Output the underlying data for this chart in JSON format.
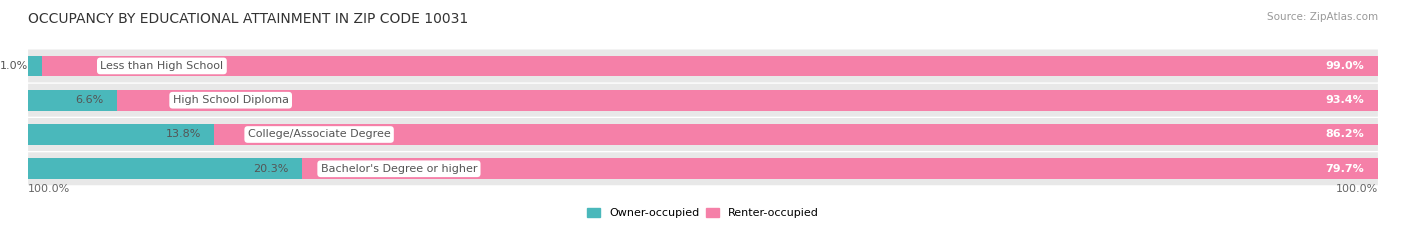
{
  "title": "OCCUPANCY BY EDUCATIONAL ATTAINMENT IN ZIP CODE 10031",
  "source": "Source: ZipAtlas.com",
  "categories": [
    "Less than High School",
    "High School Diploma",
    "College/Associate Degree",
    "Bachelor's Degree or higher"
  ],
  "owner_pct": [
    1.0,
    6.6,
    13.8,
    20.3
  ],
  "renter_pct": [
    99.0,
    93.4,
    86.2,
    79.7
  ],
  "owner_color": "#4ab8bb",
  "renter_color": "#f580a8",
  "bar_bg_color": "#e8e8e8",
  "row_sep_color": "#ffffff",
  "title_fontsize": 10,
  "source_fontsize": 7.5,
  "bar_label_fontsize": 8,
  "cat_label_fontsize": 8,
  "tick_fontsize": 8,
  "legend_fontsize": 8,
  "left_axis_label": "100.0%",
  "right_axis_label": "100.0%",
  "background_color": "#ffffff",
  "label_color": "#555555",
  "cat_label_color": "#555555",
  "renter_pct_color": "#ffffff"
}
